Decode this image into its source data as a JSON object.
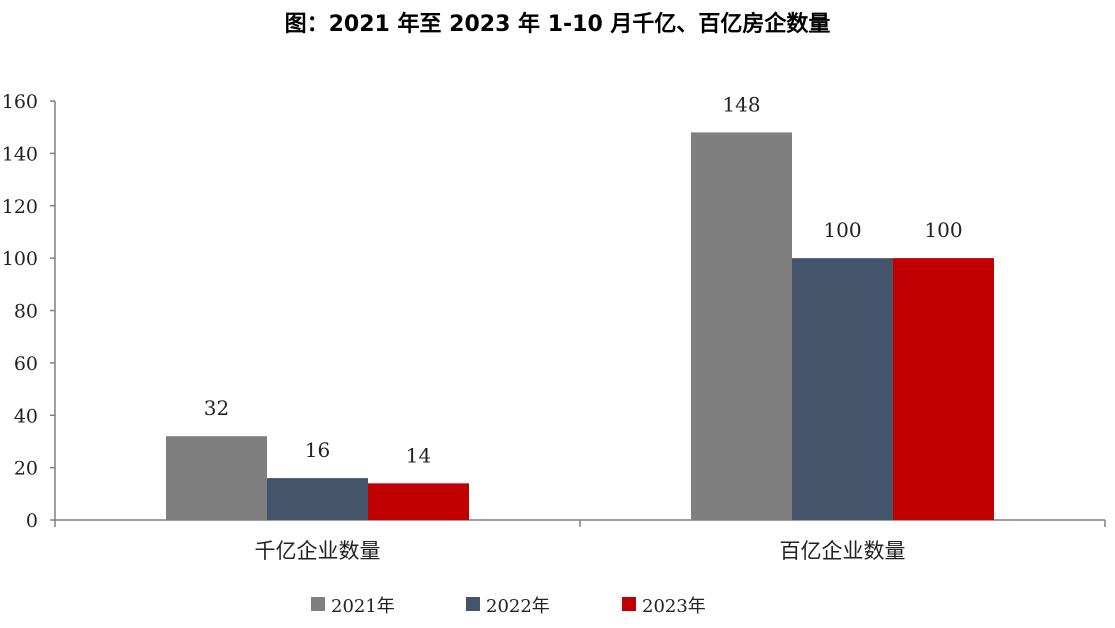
{
  "chart_data": {
    "type": "bar",
    "title": "图：2021 年至 2023 年 1-10 月千亿、百亿房企数量",
    "categories": [
      "千亿企业数量",
      "百亿企业数量"
    ],
    "series": [
      {
        "name": "2021年",
        "values": [
          32,
          148
        ],
        "color": "#7f7f7f"
      },
      {
        "name": "2022年",
        "values": [
          16,
          100
        ],
        "color": "#44546a"
      },
      {
        "name": "2023年",
        "values": [
          14,
          100
        ],
        "color": "#c00000"
      }
    ],
    "ylim": [
      0,
      160
    ],
    "yticks": [
      0,
      20,
      40,
      60,
      80,
      100,
      120,
      140,
      160
    ],
    "grid": false,
    "legend": "bottom",
    "xlabel": "",
    "ylabel": ""
  }
}
